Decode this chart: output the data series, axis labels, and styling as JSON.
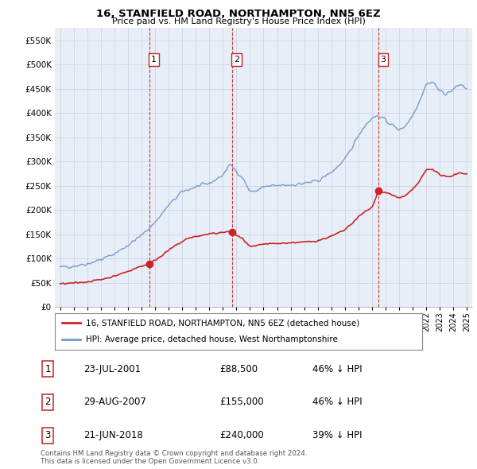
{
  "title": "16, STANFIELD ROAD, NORTHAMPTON, NN5 6EZ",
  "subtitle": "Price paid vs. HM Land Registry's House Price Index (HPI)",
  "legend_red": "16, STANFIELD ROAD, NORTHAMPTON, NN5 6EZ (detached house)",
  "legend_blue": "HPI: Average price, detached house, West Northamptonshire",
  "footer1": "Contains HM Land Registry data © Crown copyright and database right 2024.",
  "footer2": "This data is licensed under the Open Government Licence v3.0.",
  "transactions": [
    {
      "num": 1,
      "date": "23-JUL-2001",
      "price": 88500,
      "pct": "46%",
      "dir": "↓"
    },
    {
      "num": 2,
      "date": "29-AUG-2007",
      "price": 155000,
      "pct": "46%",
      "dir": "↓"
    },
    {
      "num": 3,
      "date": "21-JUN-2018",
      "price": 240000,
      "pct": "39%",
      "dir": "↓"
    }
  ],
  "sale_years": [
    2001.56,
    2007.66,
    2018.47
  ],
  "sale_prices": [
    88500,
    155000,
    240000
  ],
  "ylim": [
    0,
    575000
  ],
  "yticks": [
    0,
    50000,
    100000,
    150000,
    200000,
    250000,
    300000,
    350000,
    400000,
    450000,
    500000,
    550000
  ],
  "background_color": "#ffffff",
  "plot_bg": "#e8eef7",
  "grid_color": "#c8d0dc",
  "red_color": "#cc2222",
  "blue_color": "#7799cc",
  "dashed_color": "#cc2222",
  "xmin": 1995,
  "xmax": 2025
}
